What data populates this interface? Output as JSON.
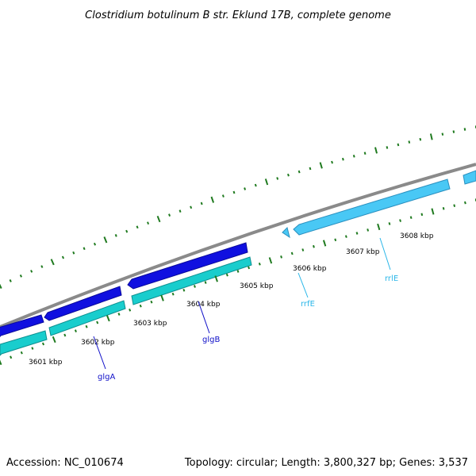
{
  "title": "Clostridium botulinum B str. Eklund 17B, complete genome",
  "footer": {
    "accession": "Accession: NC_010674",
    "summary": "Topology: circular; Length: 3,800,327 bp; Genes: 3,537"
  },
  "colors": {
    "backbone": "#8a8a8a",
    "cds_forward": "#1010e0",
    "cds_reverse": "#19cdcd",
    "rrna": "#49c8f5",
    "tick": "#1f7a1f",
    "label_blue": "#1010c8",
    "label_cyan": "#29b6e8"
  },
  "scale_labels": [
    "3601 kbp",
    "3602 kbp",
    "3603 kbp",
    "3604 kbp",
    "3605 kbp",
    "3606 kbp",
    "3607 kbp",
    "3608 kbp"
  ],
  "features": [
    {
      "name": "glgA",
      "type": "CDS"
    },
    {
      "name": "glgB",
      "type": "CDS"
    },
    {
      "name": "rrfE",
      "type": "rRNA"
    },
    {
      "name": "rrlE",
      "type": "rRNA"
    }
  ]
}
